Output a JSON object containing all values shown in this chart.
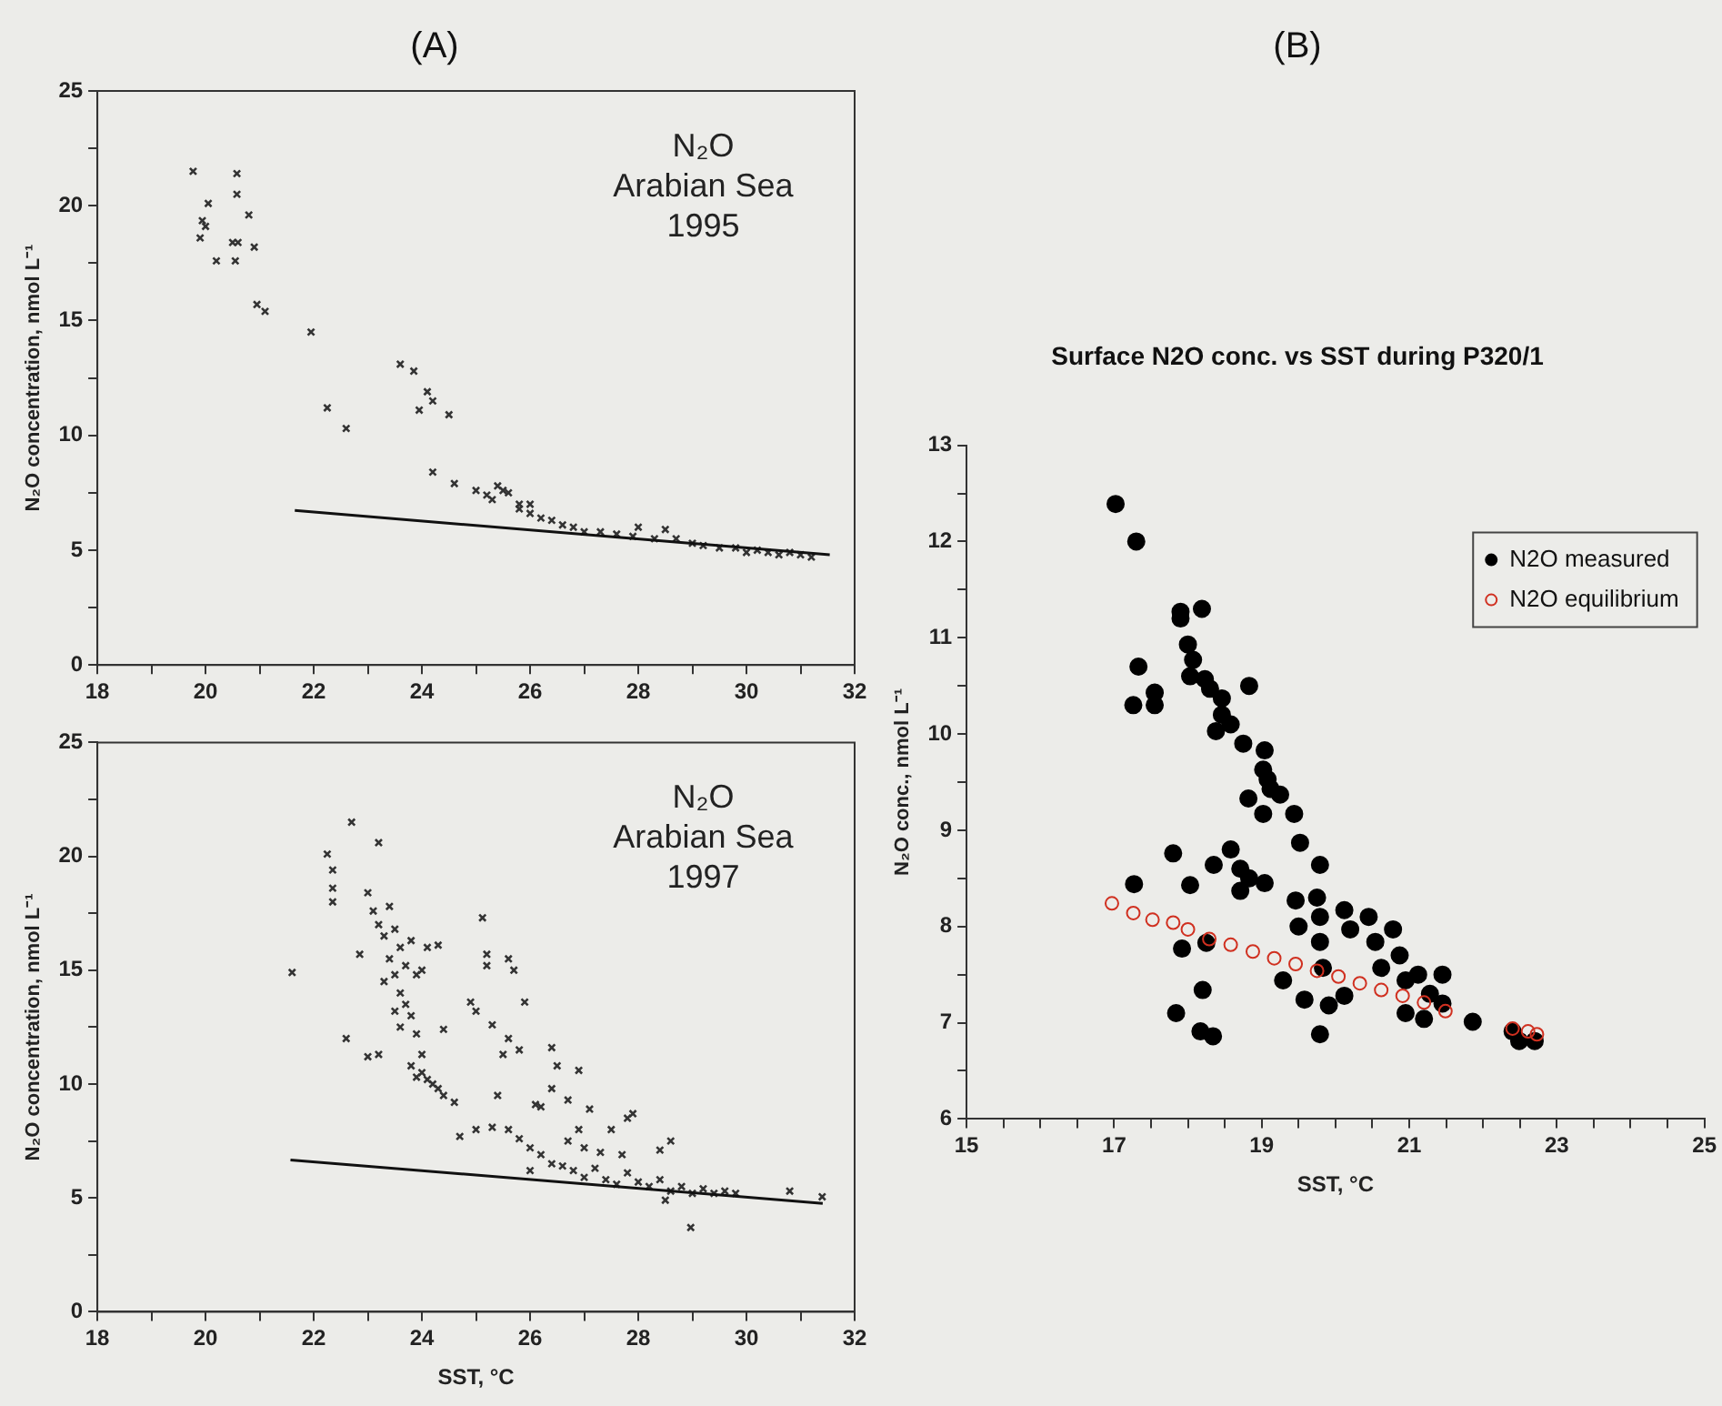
{
  "chart_data": [
    {
      "type": "scatter",
      "title": "(A)",
      "ylabel": "N₂O concentration, nmol L⁻¹",
      "annotations": [
        "N₂O",
        "Arabian Sea",
        "1995"
      ],
      "xlim": [
        18,
        32
      ],
      "xticks": [
        18,
        {
          "value": 19,
          "label": null
        },
        20,
        {
          "value": 21,
          "label": null
        },
        22,
        {
          "value": 23,
          "label": null
        },
        24,
        {
          "value": 25,
          "label": null
        },
        26,
        {
          "value": 27,
          "label": null
        },
        28,
        {
          "value": 29,
          "label": null
        },
        30,
        {
          "value": 31,
          "label": null
        },
        32
      ],
      "ylim": [
        0,
        25
      ],
      "yticks": [
        0,
        {
          "value": 2.5,
          "label": null
        },
        5,
        {
          "value": 7.5,
          "label": null
        },
        10,
        {
          "value": 12.5,
          "label": null
        },
        15,
        {
          "value": 17.5,
          "label": null
        },
        20,
        {
          "value": 22.5,
          "label": null
        },
        25
      ],
      "grid": false,
      "series": [
        {
          "marker": "cross",
          "color": "#333333",
          "x": [
            19.77,
            20.05,
            19.94,
            20.0,
            19.9,
            20.2,
            20.58,
            20.58,
            20.5,
            20.6,
            20.55,
            20.8,
            20.9,
            20.95,
            21.1,
            21.95,
            22.25,
            22.6,
            23.6,
            23.85,
            24.1,
            24.2,
            23.95,
            24.5,
            24.2,
            24.6,
            25.0,
            25.2,
            25.3,
            25.4,
            25.5,
            25.6,
            25.8,
            25.8,
            26.0,
            26.2,
            26.4,
            26.6,
            26.0,
            26.8,
            27.0,
            27.3,
            27.6,
            27.9,
            28.0,
            28.3,
            28.5,
            28.7,
            29.0,
            29.2,
            29.5,
            29.8,
            30.0,
            30.2,
            30.4,
            30.6,
            30.8,
            31.0,
            31.2
          ],
          "values": [
            21.5,
            20.1,
            19.35,
            19.1,
            18.6,
            17.6,
            21.4,
            20.5,
            18.4,
            18.4,
            17.6,
            19.6,
            18.2,
            15.7,
            15.4,
            14.5,
            11.2,
            10.3,
            13.1,
            12.8,
            11.9,
            11.5,
            11.1,
            10.9,
            8.4,
            7.9,
            7.6,
            7.4,
            7.2,
            7.8,
            7.6,
            7.5,
            7.0,
            6.8,
            6.6,
            6.4,
            6.3,
            6.1,
            7.0,
            6.0,
            5.8,
            5.8,
            5.7,
            5.6,
            6.0,
            5.5,
            5.9,
            5.5,
            5.3,
            5.2,
            5.1,
            5.1,
            4.9,
            5.0,
            4.9,
            4.8,
            4.9,
            4.8,
            4.7
          ]
        },
        {
          "type": "line",
          "marker": "none",
          "color": "#111111",
          "x": [
            21.65,
            31.54
          ],
          "values": [
            6.73,
            4.8
          ]
        }
      ]
    },
    {
      "type": "scatter",
      "xlabel": "SST, °C",
      "ylabel": "N₂O concentration, nmol L⁻¹",
      "annotations": [
        "N₂O",
        "Arabian Sea",
        "1997"
      ],
      "xlim": [
        18,
        32
      ],
      "xticks": [
        18,
        {
          "value": 19,
          "label": null
        },
        20,
        {
          "value": 21,
          "label": null
        },
        22,
        {
          "value": 23,
          "label": null
        },
        24,
        {
          "value": 25,
          "label": null
        },
        26,
        {
          "value": 27,
          "label": null
        },
        28,
        {
          "value": 29,
          "label": null
        },
        30,
        {
          "value": 31,
          "label": null
        },
        32
      ],
      "ylim": [
        0,
        25
      ],
      "yticks": [
        0,
        {
          "value": 2.5,
          "label": null
        },
        5,
        {
          "value": 7.5,
          "label": null
        },
        10,
        {
          "value": 12.5,
          "label": null
        },
        15,
        {
          "value": 17.5,
          "label": null
        },
        20,
        {
          "value": 22.5,
          "label": null
        },
        25
      ],
      "grid": false,
      "series": [
        {
          "marker": "cross",
          "color": "#333333",
          "x": [
            21.6,
            22.25,
            22.35,
            22.35,
            22.35,
            22.7,
            23.2,
            22.6,
            22.85,
            23.0,
            23.1,
            23.2,
            23.3,
            23.4,
            23.5,
            23.6,
            23.4,
            23.5,
            23.6,
            23.7,
            23.5,
            23.8,
            23.6,
            23.9,
            23.7,
            23.8,
            23.3,
            23.0,
            23.2,
            23.9,
            24.0,
            24.1,
            24.3,
            24.0,
            23.8,
            24.0,
            24.1,
            24.2,
            24.3,
            24.4,
            24.6,
            23.9,
            24.4,
            25.2,
            25.2,
            24.9,
            25.0,
            25.3,
            25.6,
            25.5,
            25.8,
            25.6,
            25.7,
            25.9,
            25.12,
            25.4,
            24.7,
            25.0,
            25.3,
            25.6,
            26.1,
            26.2,
            26.4,
            26.4,
            26.5,
            26.7,
            26.9,
            27.1,
            26.9,
            26.7,
            27.0,
            27.5,
            27.8,
            27.9,
            27.7,
            28.4,
            28.6,
            27.3,
            25.8,
            26.0,
            26.2,
            26.4,
            26.0,
            26.6,
            26.8,
            27.0,
            27.2,
            27.4,
            27.6,
            27.8,
            28.0,
            28.2,
            28.4,
            28.6,
            28.8,
            29.0,
            29.2,
            29.4,
            29.6,
            29.8,
            28.5,
            28.97,
            30.8,
            31.4
          ],
          "values": [
            14.9,
            20.1,
            19.4,
            18.6,
            18.0,
            21.5,
            20.6,
            12.0,
            15.7,
            18.4,
            17.6,
            17.0,
            16.5,
            17.8,
            16.8,
            16.0,
            15.5,
            14.8,
            14.0,
            13.5,
            13.2,
            13.0,
            12.5,
            12.2,
            15.2,
            16.3,
            14.5,
            11.2,
            11.3,
            14.8,
            15.0,
            16.0,
            16.1,
            11.3,
            10.8,
            10.5,
            10.2,
            10.0,
            9.8,
            9.5,
            9.2,
            10.3,
            12.4,
            15.7,
            15.2,
            13.6,
            13.2,
            12.6,
            12.0,
            11.3,
            11.5,
            15.5,
            15.0,
            13.6,
            17.3,
            9.5,
            7.7,
            8.0,
            8.1,
            8.0,
            9.1,
            9.0,
            9.8,
            11.6,
            10.8,
            9.3,
            10.6,
            8.9,
            8.0,
            7.5,
            7.2,
            8.0,
            8.5,
            8.7,
            6.9,
            7.1,
            7.5,
            7.0,
            7.6,
            7.2,
            6.9,
            6.5,
            6.2,
            6.4,
            6.2,
            5.9,
            6.3,
            5.8,
            5.6,
            6.1,
            5.7,
            5.5,
            5.8,
            5.3,
            5.5,
            5.2,
            5.4,
            5.2,
            5.3,
            5.2,
            4.9,
            3.7,
            5.3,
            5.05
          ]
        },
        {
          "type": "line",
          "marker": "none",
          "color": "#111111",
          "x": [
            21.57,
            31.41
          ],
          "values": [
            6.67,
            4.76
          ]
        }
      ]
    },
    {
      "type": "scatter",
      "title": "(B)",
      "subtitle": "Surface N2O conc. vs SST during P320/1",
      "xlabel": "SST, °C",
      "ylabel": "N₂O conc., nmol L⁻¹",
      "xlim": [
        15,
        25
      ],
      "xticks": [
        15,
        {
          "value": 15.5,
          "label": null
        },
        {
          "value": 16,
          "label": null
        },
        {
          "value": 16.5,
          "label": null
        },
        17,
        {
          "value": 17.5,
          "label": null
        },
        {
          "value": 18,
          "label": null
        },
        {
          "value": 18.5,
          "label": null
        },
        19,
        {
          "value": 19.5,
          "label": null
        },
        {
          "value": 20,
          "label": null
        },
        {
          "value": 20.5,
          "label": null
        },
        21,
        {
          "value": 21.5,
          "label": null
        },
        {
          "value": 22,
          "label": null
        },
        {
          "value": 22.5,
          "label": null
        },
        23,
        {
          "value": 23.5,
          "label": null
        },
        {
          "value": 24,
          "label": null
        },
        {
          "value": 24.5,
          "label": null
        },
        25
      ],
      "ylim": [
        6,
        13
      ],
      "yticks": [
        6,
        {
          "value": 6.5,
          "label": null
        },
        7,
        {
          "value": 7.5,
          "label": null
        },
        8,
        {
          "value": 8.5,
          "label": null
        },
        9,
        {
          "value": 9.5,
          "label": null
        },
        10,
        {
          "value": 10.5,
          "label": null
        },
        11,
        {
          "value": 11.5,
          "label": null
        },
        12,
        {
          "value": 12.5,
          "label": null
        },
        13
      ],
      "grid": false,
      "marker": "circle",
      "legend": "top right",
      "series": [
        {
          "name": "N2O measured",
          "color": "#000000",
          "x": [
            17.02,
            17.3,
            17.9,
            17.9,
            18.19,
            18.0,
            18.07,
            18.03,
            18.23,
            18.3,
            18.46,
            18.46,
            18.38,
            18.58,
            18.83,
            18.75,
            19.04,
            19.02,
            19.08,
            19.12,
            18.82,
            19.25,
            19.02,
            19.44,
            19.52,
            17.33,
            17.26,
            17.55,
            17.55,
            17.8,
            17.27,
            18.03,
            18.35,
            18.58,
            18.71,
            18.83,
            18.71,
            19.04,
            19.46,
            19.79,
            19.75,
            19.79,
            19.5,
            19.79,
            19.83,
            20.12,
            20.2,
            20.45,
            20.54,
            20.78,
            20.62,
            20.87,
            20.95,
            21.12,
            21.45,
            21.28,
            21.45,
            20.95,
            21.2,
            20.12,
            19.91,
            19.58,
            19.29,
            19.79,
            18.34,
            18.17,
            18.2,
            17.84,
            17.92,
            18.25,
            21.86,
            22.4,
            22.49,
            22.7
          ],
          "values": [
            12.39,
            12.0,
            11.2,
            11.27,
            11.3,
            10.93,
            10.77,
            10.6,
            10.57,
            10.47,
            10.37,
            10.2,
            10.03,
            10.1,
            10.5,
            9.9,
            9.83,
            9.63,
            9.53,
            9.43,
            9.33,
            9.37,
            9.17,
            9.17,
            8.87,
            10.7,
            10.3,
            10.43,
            10.3,
            8.76,
            8.44,
            8.43,
            8.64,
            8.8,
            8.6,
            8.5,
            8.37,
            8.45,
            8.27,
            8.64,
            8.3,
            8.1,
            8.0,
            7.84,
            7.57,
            8.17,
            7.97,
            8.1,
            7.84,
            7.97,
            7.57,
            7.7,
            7.44,
            7.5,
            7.5,
            7.3,
            7.2,
            7.1,
            7.04,
            7.28,
            7.18,
            7.24,
            7.44,
            6.88,
            6.86,
            6.91,
            7.34,
            7.1,
            7.77,
            7.83,
            7.01,
            6.91,
            6.81,
            6.81
          ]
        },
        {
          "name": "N2O equilibrium",
          "color": "#d03020",
          "x": [
            16.97,
            17.26,
            17.52,
            17.8,
            18.0,
            18.29,
            18.58,
            18.88,
            19.17,
            19.46,
            19.75,
            20.04,
            20.33,
            20.62,
            20.91,
            21.2,
            21.49,
            22.4,
            22.61,
            22.73
          ],
          "values": [
            8.24,
            8.14,
            8.07,
            8.04,
            7.97,
            7.87,
            7.81,
            7.74,
            7.67,
            7.61,
            7.54,
            7.48,
            7.41,
            7.34,
            7.28,
            7.21,
            7.12,
            6.94,
            6.91,
            6.88
          ]
        }
      ]
    }
  ]
}
